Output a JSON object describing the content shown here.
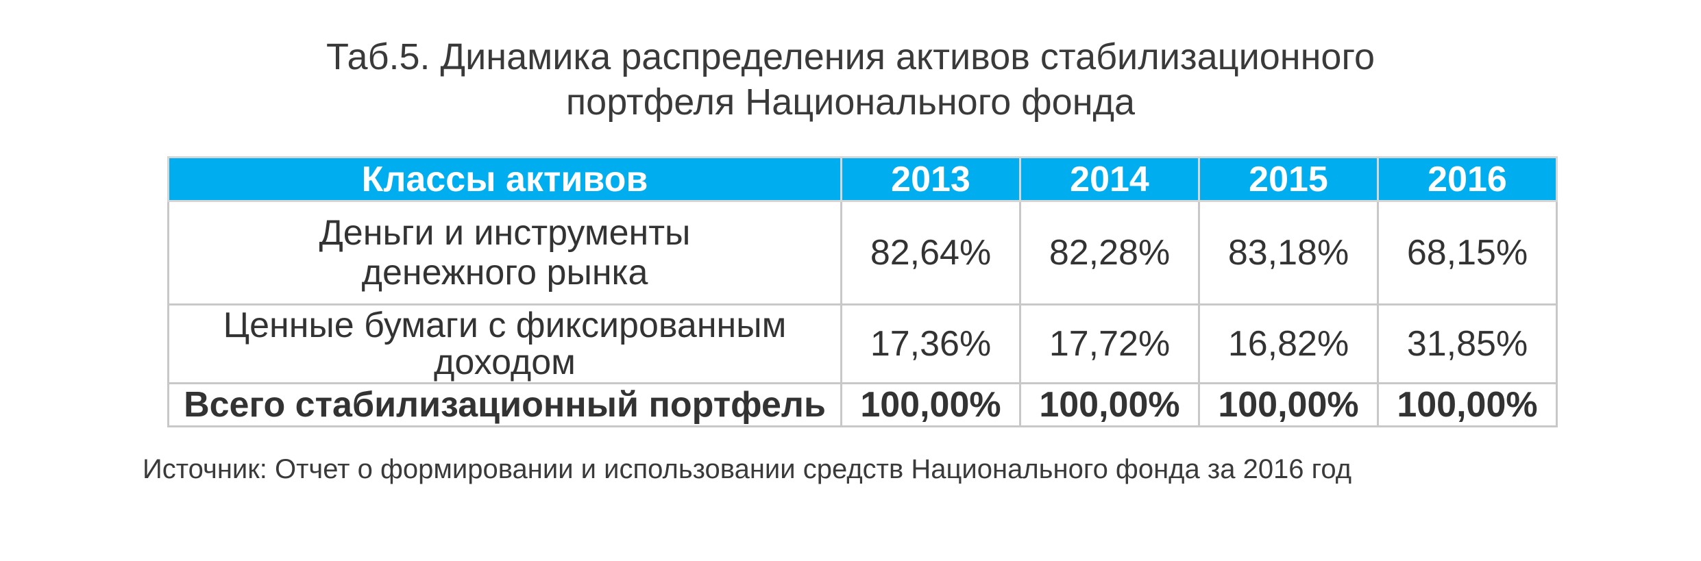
{
  "title": {
    "line1": "Таб.5. Динамика распределения активов стабилизационного",
    "line2": "портфеля Национального фонда"
  },
  "table": {
    "header": {
      "label": "Классы активов",
      "years": [
        "2013",
        "2014",
        "2015",
        "2016"
      ]
    },
    "rows": [
      {
        "label_line1": "Деньги и инструменты",
        "label_line2": "денежного рынка",
        "values": [
          "82,64%",
          "82,28%",
          "83,18%",
          "68,15%"
        ]
      },
      {
        "label_line1": "Ценные бумаги с фиксированным",
        "label_line2": "доходом",
        "values": [
          "17,36%",
          "17,72%",
          "16,82%",
          "31,85%"
        ]
      },
      {
        "label_line1": "Всего стабилизационный портфель",
        "values": [
          "100,00%",
          "100,00%",
          "100,00%",
          "100,00%"
        ]
      }
    ]
  },
  "source": "Источник: Отчет о формировании и использовании средств Национального фонда за 2016 год",
  "colors": {
    "header_background": "#00aeef",
    "header_text": "#ffffff",
    "grid": "#c8c8c8"
  }
}
